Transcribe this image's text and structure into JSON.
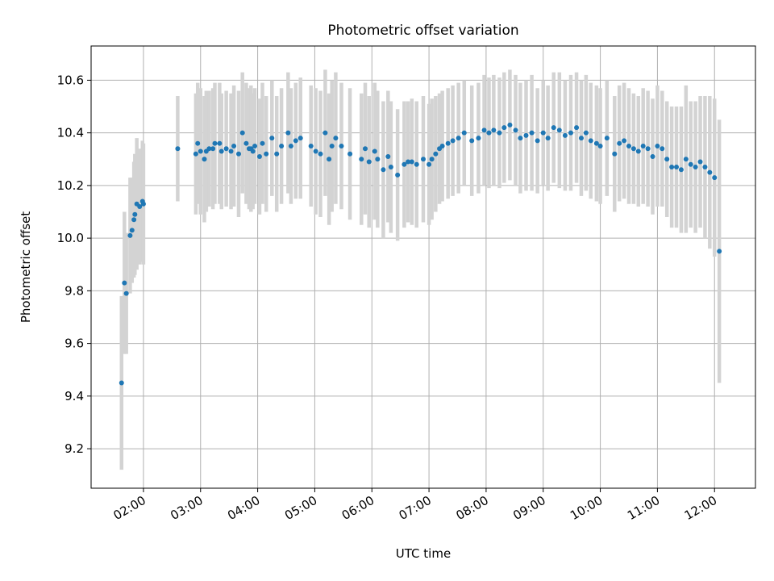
{
  "chart_data": {
    "type": "scatter",
    "title": "Photometric offset variation",
    "xlabel": "UTC time",
    "ylabel": "Photometric offset",
    "x_ticks": [
      "02:00",
      "03:00",
      "04:00",
      "05:00",
      "06:00",
      "07:00",
      "08:00",
      "09:00",
      "10:00",
      "11:00",
      "12:00"
    ],
    "y_ticks": [
      "9.2",
      "9.4",
      "9.6",
      "9.8",
      "10.0",
      "10.2",
      "10.4",
      "10.6"
    ],
    "xlim": [
      "01:05",
      "12:43"
    ],
    "ylim": [
      9.05,
      10.73
    ],
    "grid": true,
    "colors": {
      "point": "#1f77b4",
      "errorbar": "#d3d3d3",
      "grid": "#b0b0b0"
    },
    "series": [
      {
        "x": [
          "01:37",
          "01:40",
          "01:42",
          "01:46",
          "01:48",
          "01:50",
          "01:51",
          "01:53",
          "01:56",
          "01:59",
          "02:00",
          "02:36",
          "02:55",
          "02:57",
          "03:00",
          "03:04",
          "03:06",
          "03:09",
          "03:13",
          "03:15",
          "03:20",
          "03:22",
          "03:27",
          "03:32",
          "03:35",
          "03:40",
          "03:44",
          "03:48",
          "03:51",
          "03:53",
          "03:55",
          "03:57",
          "04:02",
          "04:05",
          "04:09",
          "04:15",
          "04:20",
          "04:25",
          "04:32",
          "04:35",
          "04:40",
          "04:45",
          "04:56",
          "05:01",
          "05:06",
          "05:11",
          "05:15",
          "05:18",
          "05:22",
          "05:28",
          "05:37",
          "05:49",
          "05:53",
          "05:57",
          "06:03",
          "06:06",
          "06:12",
          "06:17",
          "06:20",
          "06:27",
          "06:34",
          "06:38",
          "06:42",
          "06:47",
          "06:54",
          "07:00",
          "07:03",
          "07:07",
          "07:11",
          "07:14",
          "07:20",
          "07:25",
          "07:31",
          "07:37",
          "07:45",
          "07:52",
          "07:58",
          "08:03",
          "08:08",
          "08:14",
          "08:19",
          "08:25",
          "08:31",
          "08:36",
          "08:42",
          "08:48",
          "08:54",
          "09:00",
          "09:05",
          "09:11",
          "09:17",
          "09:23",
          "09:29",
          "09:35",
          "09:40",
          "09:45",
          "09:50",
          "09:56",
          "10:00",
          "10:07",
          "10:15",
          "10:20",
          "10:25",
          "10:30",
          "10:35",
          "10:40",
          "10:45",
          "10:50",
          "10:55",
          "11:00",
          "11:05",
          "11:10",
          "11:15",
          "11:20",
          "11:25",
          "11:30",
          "11:35",
          "11:40",
          "11:45",
          "11:50",
          "11:55",
          "12:00",
          "12:05"
        ],
        "y": [
          9.45,
          9.83,
          9.79,
          10.01,
          10.03,
          10.07,
          10.09,
          10.13,
          10.12,
          10.14,
          10.13,
          10.34,
          10.32,
          10.36,
          10.33,
          10.3,
          10.33,
          10.34,
          10.34,
          10.36,
          10.36,
          10.33,
          10.34,
          10.33,
          10.35,
          10.32,
          10.4,
          10.36,
          10.34,
          10.34,
          10.33,
          10.35,
          10.31,
          10.36,
          10.32,
          10.38,
          10.32,
          10.35,
          10.4,
          10.35,
          10.37,
          10.38,
          10.35,
          10.33,
          10.32,
          10.4,
          10.3,
          10.35,
          10.38,
          10.35,
          10.32,
          10.3,
          10.34,
          10.29,
          10.33,
          10.3,
          10.26,
          10.31,
          10.27,
          10.24,
          10.28,
          10.29,
          10.29,
          10.28,
          10.3,
          10.28,
          10.3,
          10.32,
          10.34,
          10.35,
          10.36,
          10.37,
          10.38,
          10.4,
          10.37,
          10.38,
          10.41,
          10.4,
          10.41,
          10.4,
          10.42,
          10.43,
          10.41,
          10.38,
          10.39,
          10.4,
          10.37,
          10.4,
          10.38,
          10.42,
          10.41,
          10.39,
          10.4,
          10.42,
          10.38,
          10.4,
          10.37,
          10.36,
          10.35,
          10.38,
          10.32,
          10.36,
          10.37,
          10.35,
          10.34,
          10.33,
          10.35,
          10.34,
          10.31,
          10.35,
          10.34,
          10.3,
          10.27,
          10.27,
          10.26,
          10.3,
          10.28,
          10.27,
          10.29,
          10.27,
          10.25,
          10.23,
          9.95
        ],
        "err": [
          0.33,
          0.27,
          0.23,
          0.22,
          0.2,
          0.22,
          0.23,
          0.25,
          0.22,
          0.23,
          0.23,
          0.2,
          0.23,
          0.23,
          0.24,
          0.24,
          0.23,
          0.22,
          0.23,
          0.23,
          0.23,
          0.22,
          0.22,
          0.22,
          0.23,
          0.24,
          0.23,
          0.23,
          0.23,
          0.24,
          0.22,
          0.22,
          0.22,
          0.23,
          0.22,
          0.22,
          0.22,
          0.22,
          0.23,
          0.22,
          0.22,
          0.23,
          0.23,
          0.24,
          0.24,
          0.24,
          0.25,
          0.25,
          0.25,
          0.24,
          0.25,
          0.25,
          0.25,
          0.25,
          0.26,
          0.26,
          0.26,
          0.25,
          0.25,
          0.25,
          0.24,
          0.23,
          0.24,
          0.24,
          0.24,
          0.23,
          0.23,
          0.22,
          0.21,
          0.21,
          0.21,
          0.21,
          0.21,
          0.2,
          0.21,
          0.21,
          0.21,
          0.21,
          0.21,
          0.21,
          0.21,
          0.21,
          0.21,
          0.21,
          0.21,
          0.22,
          0.2,
          0.2,
          0.2,
          0.21,
          0.22,
          0.21,
          0.22,
          0.21,
          0.22,
          0.22,
          0.22,
          0.22,
          0.22,
          0.22,
          0.22,
          0.22,
          0.22,
          0.22,
          0.21,
          0.21,
          0.22,
          0.22,
          0.22,
          0.23,
          0.22,
          0.22,
          0.23,
          0.23,
          0.24,
          0.28,
          0.24,
          0.25,
          0.25,
          0.27,
          0.29,
          0.3,
          0.5
        ]
      }
    ]
  }
}
